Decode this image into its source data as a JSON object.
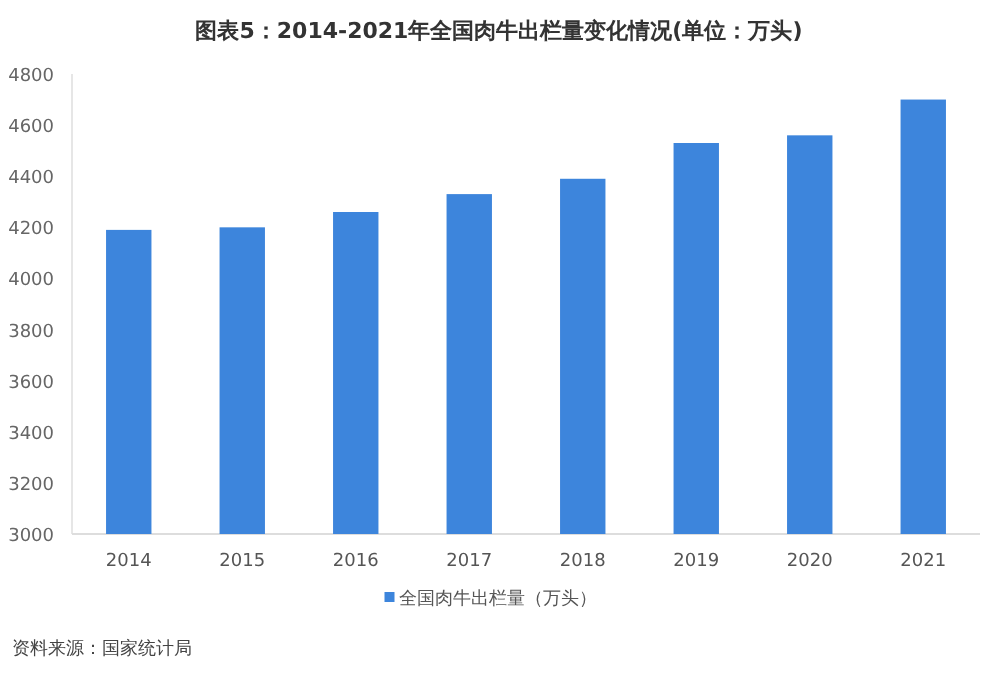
{
  "chart_data": {
    "type": "bar",
    "title": "图表5：2014-2021年全国肉牛出栏量变化情况(单位：万头)",
    "categories": [
      "2014",
      "2015",
      "2016",
      "2017",
      "2018",
      "2019",
      "2020",
      "2021"
    ],
    "series": [
      {
        "name": "全国肉牛出栏量（万头）",
        "color": "#3d85dc",
        "values": [
          4190,
          4200,
          4260,
          4330,
          4390,
          4530,
          4560,
          4700
        ]
      }
    ],
    "ylim": [
      3000,
      4800
    ],
    "yticks": [
      3000,
      3200,
      3400,
      3600,
      3800,
      4000,
      4200,
      4400,
      4600,
      4800
    ],
    "grid": false,
    "legend": "bottom",
    "annotations": [
      "资料来源：国家统计局"
    ]
  }
}
